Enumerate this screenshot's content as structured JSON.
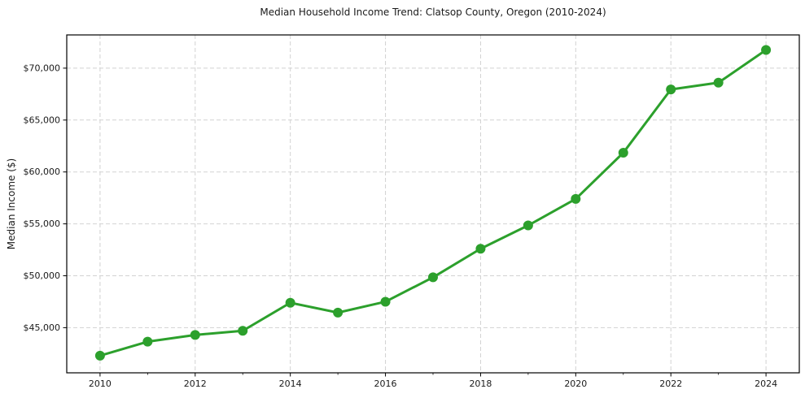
{
  "chart_data": {
    "type": "line",
    "title": "Median Household Income Trend: Clatsop County, Oregon (2010-2024)",
    "xlabel": "",
    "ylabel": "Median Income ($)",
    "x": [
      2010,
      2011,
      2012,
      2013,
      2014,
      2015,
      2016,
      2017,
      2018,
      2019,
      2020,
      2021,
      2022,
      2023,
      2024
    ],
    "values": [
      42300,
      43650,
      44300,
      44700,
      47400,
      46450,
      47500,
      49850,
      52600,
      54850,
      57400,
      61850,
      67950,
      68600,
      71750
    ],
    "xlim": [
      2009.3,
      2024.7
    ],
    "ylim": [
      40650,
      73200
    ],
    "xticks": [
      2010,
      2012,
      2014,
      2016,
      2018,
      2020,
      2022,
      2024
    ],
    "xtick_labels": [
      "2010",
      "2012",
      "2014",
      "2016",
      "2018",
      "2020",
      "2022",
      "2024"
    ],
    "x_minor_ticks": [
      2011,
      2013,
      2015,
      2017,
      2019,
      2021,
      2023
    ],
    "yticks": [
      45000,
      50000,
      55000,
      60000,
      65000,
      70000
    ],
    "ytick_labels": [
      "$45,000",
      "$50,000",
      "$55,000",
      "$60,000",
      "$65,000",
      "$70,000"
    ],
    "grid": true,
    "grid_style": "dashed",
    "grid_color": "#d2d2d2",
    "line_color": "#2ca02c",
    "line_width": 3,
    "marker": "circle",
    "marker_diameter": 12,
    "axis_color": "#000000",
    "background_color": "#ffffff",
    "legend_position": "none"
  }
}
